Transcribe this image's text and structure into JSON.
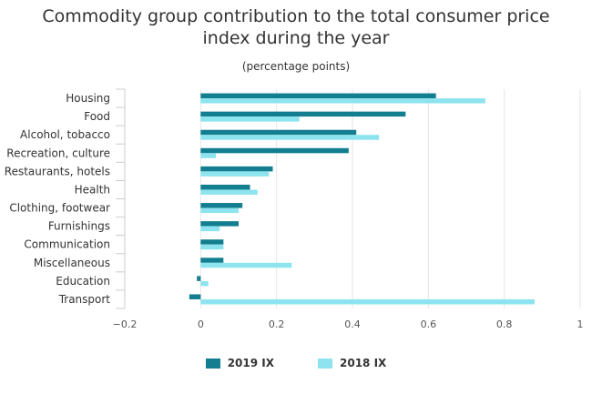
{
  "chart_data": {
    "type": "bar",
    "orientation": "horizontal",
    "title": [
      "Commodity group contribution to the total consumer price",
      "index during the year"
    ],
    "subtitle": "(percentage points)",
    "categories": [
      "Housing",
      "Food",
      "Alcohol, tobacco",
      "Recreation, culture",
      "Restaurants, hotels",
      "Health",
      "Clothing, footwear",
      "Furnishings",
      "Communication",
      "Miscellaneous",
      "Education",
      "Transport"
    ],
    "series": [
      {
        "name": "2019 IX",
        "color": "#127e8f",
        "values": [
          0.62,
          0.54,
          0.41,
          0.39,
          0.19,
          0.13,
          0.11,
          0.1,
          0.06,
          0.06,
          -0.01,
          -0.03
        ]
      },
      {
        "name": "2018 IX",
        "color": "#8ee4ee",
        "values": [
          0.75,
          0.26,
          0.47,
          0.04,
          0.18,
          0.15,
          0.1,
          0.05,
          0.06,
          0.24,
          0.02,
          0.88
        ]
      }
    ],
    "xlim": [
      -0.2,
      1
    ],
    "xticks": [
      -0.2,
      0,
      0.2,
      0.4,
      0.6,
      0.8,
      1
    ],
    "xtick_labels": [
      "−0.2",
      "0",
      "0.2",
      "0.4",
      "0.6",
      "0.8",
      "1"
    ],
    "grid": true,
    "legend_position": "bottom"
  }
}
